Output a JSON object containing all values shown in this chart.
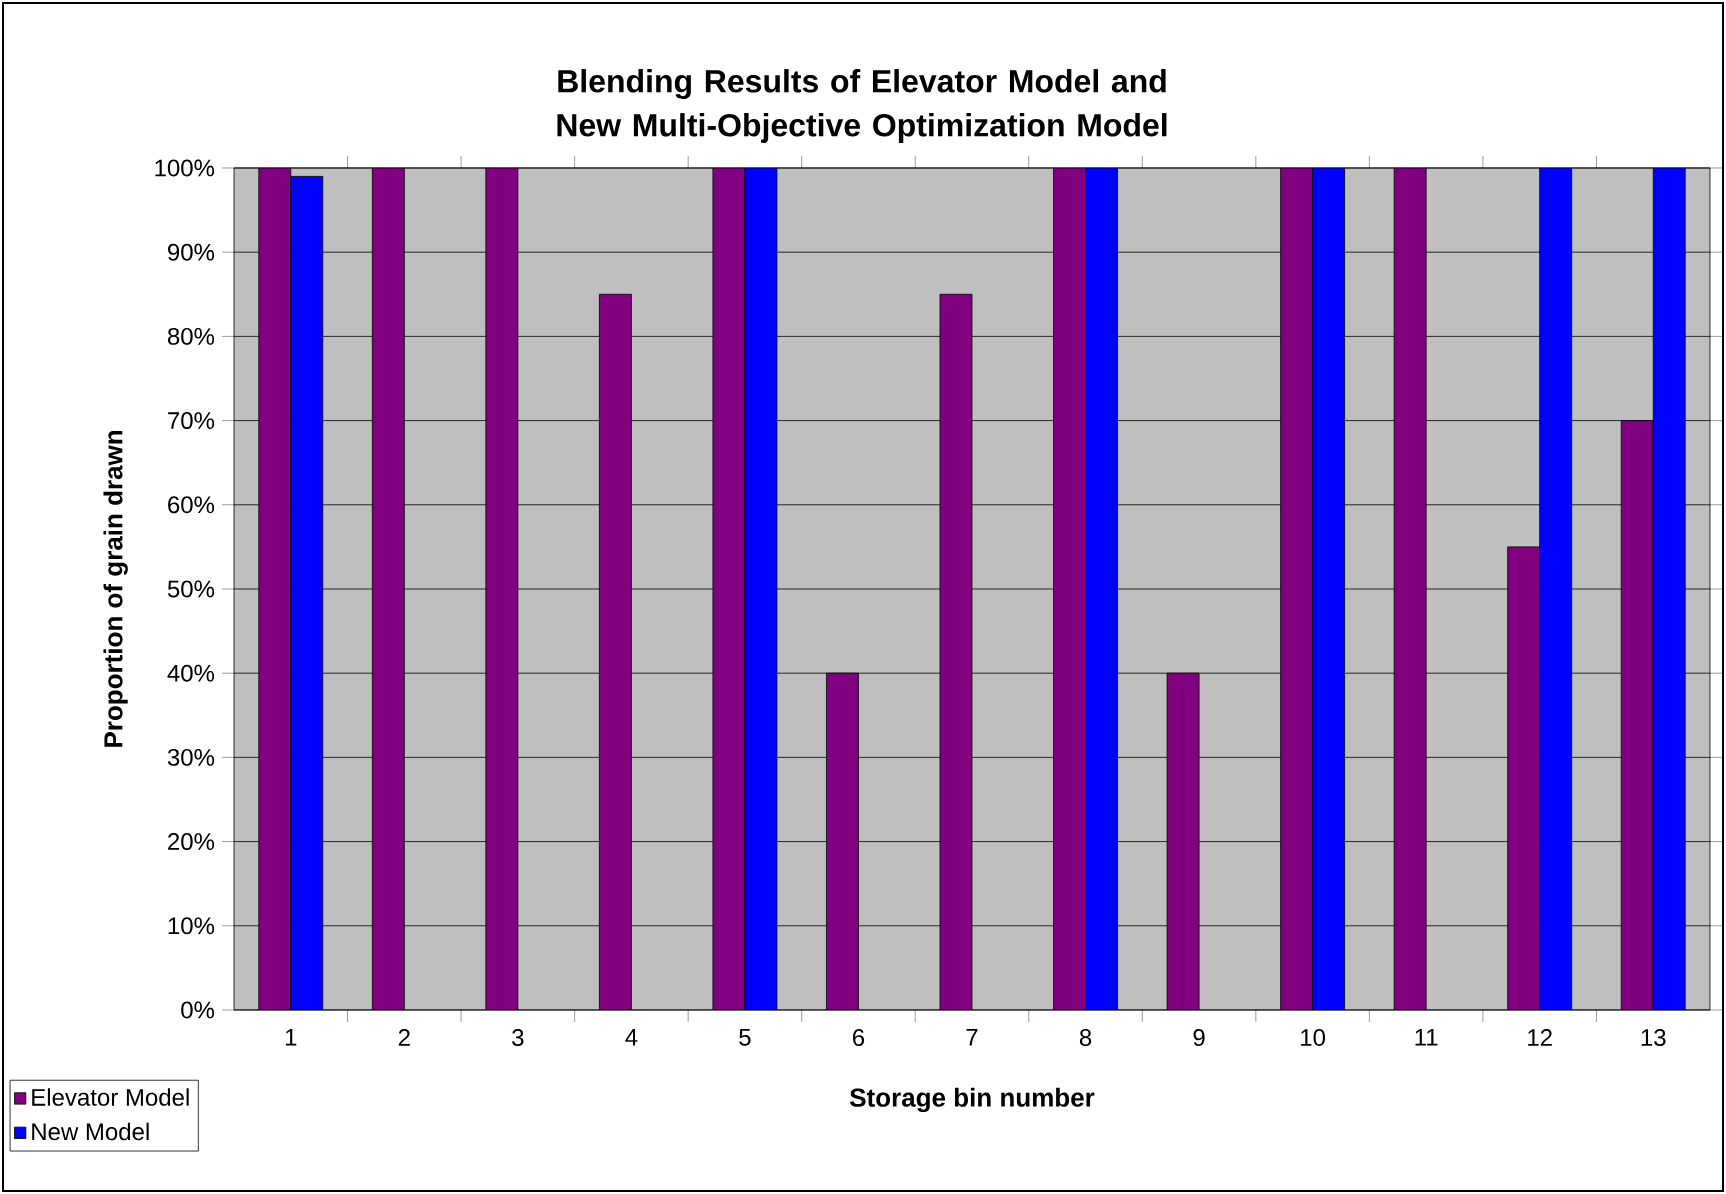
{
  "chart_data": {
    "type": "bar",
    "title": "Blending Results of Elevator Model and New Multi-Objective Optimization Model",
    "xlabel": "Storage bin number",
    "ylabel": "Proportion of grain drawn",
    "categories": [
      "1",
      "2",
      "3",
      "4",
      "5",
      "6",
      "7",
      "8",
      "9",
      "10",
      "11",
      "12",
      "13"
    ],
    "series": [
      {
        "name": "Elevator Model",
        "color": "#800080",
        "values": [
          100,
          100,
          100,
          85,
          100,
          40,
          85,
          100,
          40,
          100,
          100,
          55,
          70
        ]
      },
      {
        "name": "New Model",
        "color": "#0000ff",
        "values": [
          99,
          null,
          null,
          null,
          100,
          null,
          null,
          100,
          null,
          100,
          null,
          100,
          100
        ]
      }
    ],
    "ylim": [
      0,
      100
    ],
    "yticks": [
      {
        "value": 0,
        "label": "0%"
      },
      {
        "value": 10,
        "label": "10%"
      },
      {
        "value": 20,
        "label": "20%"
      },
      {
        "value": 30,
        "label": "30%"
      },
      {
        "value": 40,
        "label": "40%"
      },
      {
        "value": 50,
        "label": "50%"
      },
      {
        "value": 60,
        "label": "60%"
      },
      {
        "value": 70,
        "label": "70%"
      },
      {
        "value": 80,
        "label": "80%"
      },
      {
        "value": 90,
        "label": "90%"
      },
      {
        "value": 100,
        "label": "100%"
      }
    ],
    "grid": "y",
    "legend": "bottom left"
  }
}
